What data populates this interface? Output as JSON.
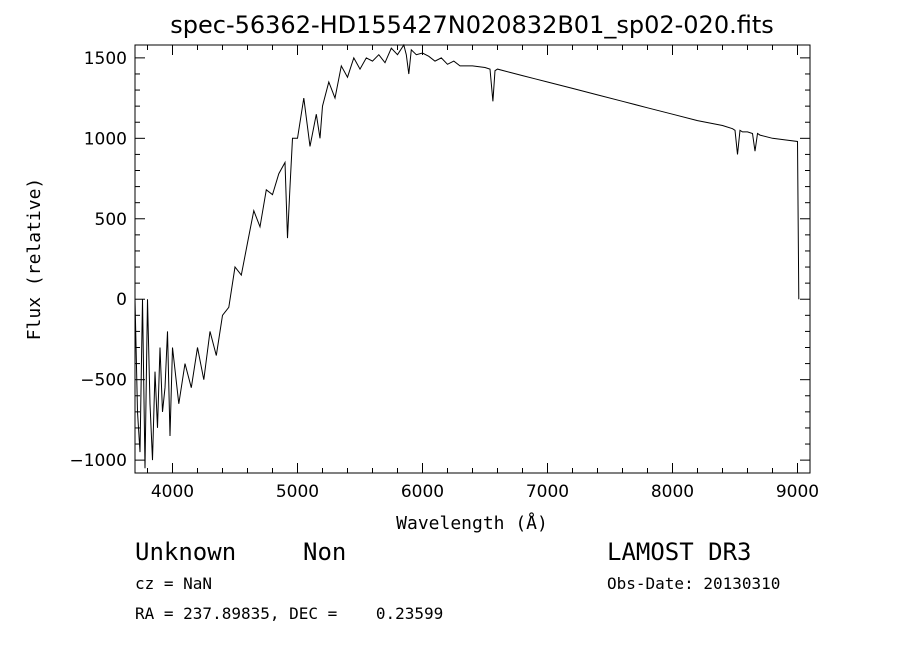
{
  "chart_data": {
    "type": "line",
    "title": "spec-56362-HD155427N020832B01_sp02-020.fits",
    "xlabel": "Wavelength (Å)",
    "ylabel": "Flux (relative)",
    "xlim": [
      3700,
      9100
    ],
    "ylim": [
      -1080,
      1580
    ],
    "x_ticks": [
      4000,
      5000,
      6000,
      7000,
      8000,
      9000
    ],
    "x_tick_labels": [
      "4000",
      "5000",
      "6000",
      "7000",
      "8000",
      "9000"
    ],
    "y_ticks": [
      -1000,
      -500,
      0,
      500,
      1000,
      1500
    ],
    "y_tick_labels": [
      "−1000",
      "−500",
      "0",
      "500",
      "1000",
      "1500"
    ],
    "grid": false,
    "series": [
      {
        "color": "#000000",
        "x": [
          3700,
          3720,
          3740,
          3760,
          3780,
          3800,
          3820,
          3840,
          3860,
          3880,
          3900,
          3920,
          3940,
          3960,
          3980,
          4000,
          4050,
          4100,
          4150,
          4200,
          4250,
          4300,
          4350,
          4400,
          4450,
          4500,
          4550,
          4600,
          4650,
          4700,
          4750,
          4800,
          4850,
          4900,
          4920,
          4940,
          4960,
          5000,
          5050,
          5100,
          5150,
          5180,
          5200,
          5250,
          5300,
          5350,
          5400,
          5450,
          5500,
          5550,
          5600,
          5650,
          5700,
          5750,
          5800,
          5850,
          5870,
          5890,
          5910,
          5950,
          6000,
          6050,
          6100,
          6150,
          6200,
          6250,
          6300,
          6400,
          6500,
          6540,
          6563,
          6580,
          6600,
          6700,
          6800,
          6900,
          7000,
          7200,
          7400,
          7600,
          7800,
          8000,
          8200,
          8400,
          8480,
          8500,
          8520,
          8540,
          8560,
          8600,
          8640,
          8660,
          8680,
          8700,
          8800,
          8900,
          9000,
          9010
        ],
        "y": [
          0,
          -700,
          -950,
          0,
          -1050,
          0,
          -650,
          -1000,
          -450,
          -800,
          -300,
          -700,
          -550,
          -200,
          -850,
          -300,
          -650,
          -400,
          -550,
          -300,
          -500,
          -200,
          -350,
          -100,
          -50,
          200,
          150,
          350,
          550,
          450,
          680,
          650,
          780,
          850,
          380,
          700,
          1000,
          1000,
          1250,
          950,
          1150,
          1000,
          1200,
          1350,
          1250,
          1450,
          1380,
          1500,
          1430,
          1500,
          1480,
          1520,
          1470,
          1560,
          1520,
          1580,
          1520,
          1400,
          1550,
          1520,
          1530,
          1510,
          1480,
          1500,
          1460,
          1480,
          1450,
          1450,
          1440,
          1430,
          1230,
          1420,
          1430,
          1410,
          1390,
          1370,
          1350,
          1310,
          1270,
          1230,
          1190,
          1150,
          1110,
          1080,
          1060,
          1050,
          900,
          1050,
          1040,
          1040,
          1030,
          920,
          1030,
          1020,
          1000,
          990,
          980,
          0
        ]
      }
    ]
  },
  "info": {
    "object_class": "Unknown",
    "subclass": "Non",
    "survey": "LAMOST DR3",
    "redshift": "cz = NaN",
    "obs_date": "Obs-Date: 20130310",
    "coords": "RA = 237.89835, DEC =    0.23599"
  }
}
